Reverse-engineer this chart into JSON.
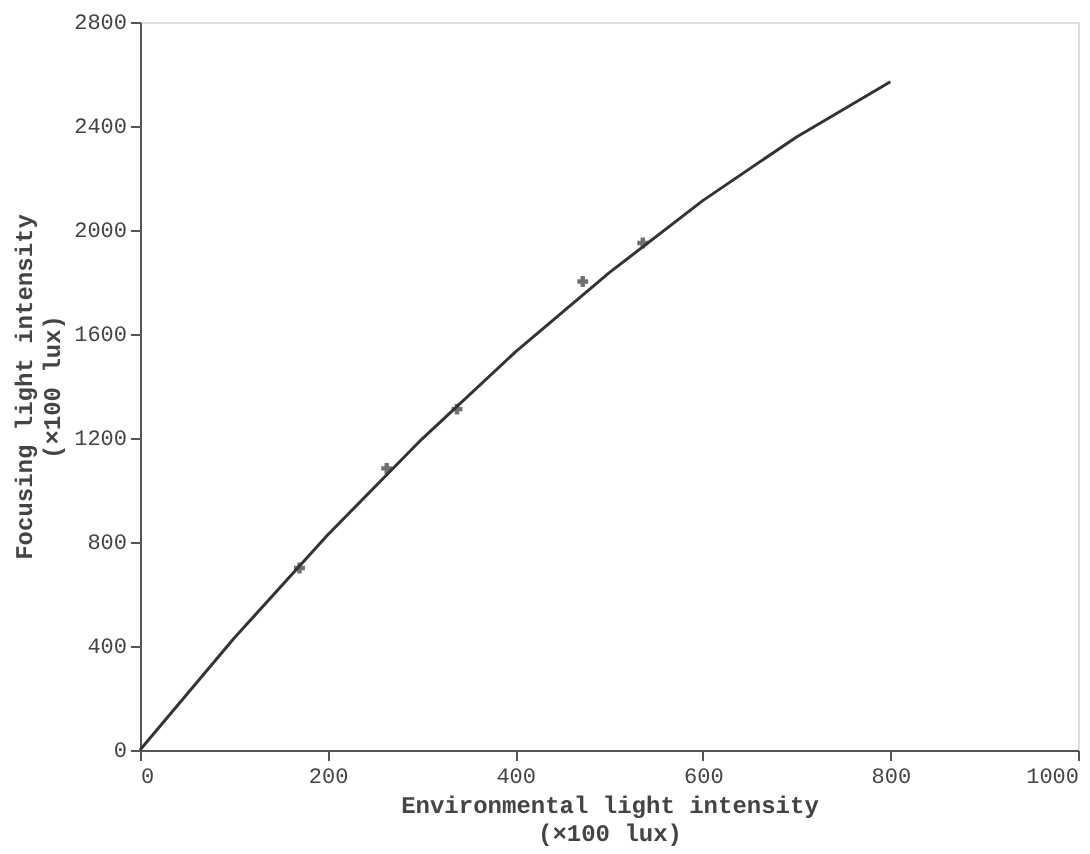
{
  "chart_data": {
    "type": "scatter",
    "xlabel": "Environmental light intensity\n(×100 lux)",
    "ylabel": "Focusing light intensity\n(×100 lux)",
    "xlim": [
      0,
      1000
    ],
    "xticks": [
      0,
      200,
      400,
      600,
      800,
      1000
    ],
    "ylim": [
      0,
      2800
    ],
    "yticks": [
      0,
      400,
      800,
      1200,
      1600,
      2000,
      2400,
      2800
    ],
    "grid": false,
    "series": [
      {
        "type": "line",
        "color": "#333333",
        "line_style": "solid",
        "marker": "none",
        "x": [
          0,
          100,
          200,
          300,
          400,
          500,
          600,
          700,
          800
        ],
        "values": [
          0,
          429,
          827,
          1194,
          1530,
          1835,
          2113,
          2358,
          2570
        ]
      },
      {
        "color": "#333333",
        "marker": "cross",
        "x": [
          170,
          263,
          338,
          472,
          536
        ],
        "values": [
          700,
          1083,
          1311,
          1802,
          1950
        ]
      }
    ]
  }
}
